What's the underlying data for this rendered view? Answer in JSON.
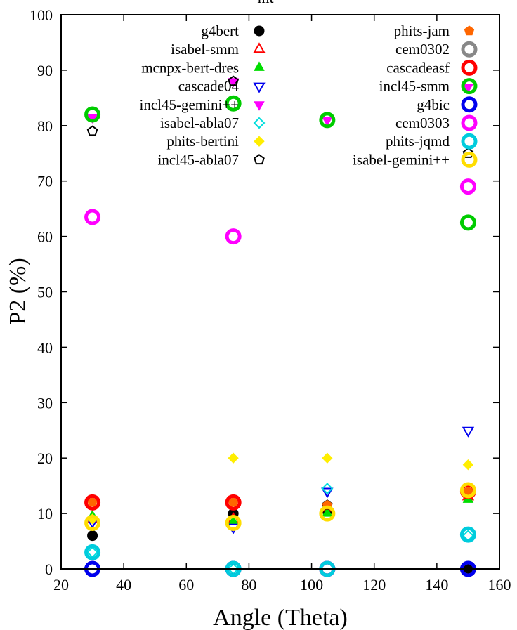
{
  "chart_data": {
    "type": "scatter",
    "title": "int",
    "xlabel": "Angle (Theta)",
    "ylabel": "P2 (%)",
    "xlim": [
      20,
      160
    ],
    "ylim": [
      0,
      100
    ],
    "xticks": [
      20,
      40,
      60,
      80,
      100,
      120,
      140,
      160
    ],
    "yticks": [
      0,
      10,
      20,
      30,
      40,
      50,
      60,
      70,
      80,
      90,
      100
    ],
    "x_tick_labels": [
      "20",
      "40",
      "60",
      "80",
      "100",
      "120",
      "140",
      "160"
    ],
    "y_tick_labels": [
      "0",
      "10",
      "20",
      "30",
      "40",
      "50",
      "60",
      "70",
      "80",
      "90",
      "100"
    ],
    "grid": false,
    "legend_position": "top (two columns)",
    "series": [
      {
        "name": "g4bert",
        "marker": "circle",
        "color": "#000000",
        "x": [
          30,
          75,
          105,
          150
        ],
        "y": [
          6,
          10,
          10.5,
          0
        ]
      },
      {
        "name": "isabel-smm",
        "marker": "triangle-up-open",
        "color": "#ff0000",
        "x": [
          30,
          75,
          105,
          150
        ],
        "y": [
          9,
          9,
          11,
          13
        ]
      },
      {
        "name": "mcnpx-bert-dres",
        "marker": "triangle-up",
        "color": "#00dd00",
        "x": [
          30,
          75,
          105,
          150
        ],
        "y": [
          9.5,
          8.5,
          10,
          12.5
        ]
      },
      {
        "name": "cascade04",
        "marker": "triangle-down-open",
        "color": "#0000ee",
        "x": [
          30,
          75,
          105,
          150
        ],
        "y": [
          8.5,
          7.5,
          14,
          25
        ]
      },
      {
        "name": "incl45-gemini++",
        "marker": "triangle-down",
        "color": "#ff00ff",
        "x": [
          30,
          75,
          105,
          150
        ],
        "y": [
          81.5,
          88,
          81,
          87
        ]
      },
      {
        "name": "isabel-abla07",
        "marker": "diamond-open",
        "color": "#00dddd",
        "x": [
          30,
          75,
          105,
          150
        ],
        "y": [
          3,
          0,
          14.5,
          6
        ]
      },
      {
        "name": "phits-bertini",
        "marker": "diamond",
        "color": "#ffee00",
        "x": [
          30,
          75,
          105,
          150
        ],
        "y": [
          9,
          20,
          20,
          18.8
        ]
      },
      {
        "name": "incl45-abla07",
        "marker": "pentagon-open",
        "color": "#000000",
        "x": [
          30,
          75,
          105,
          150
        ],
        "y": [
          79,
          88,
          11.5,
          75
        ]
      },
      {
        "name": "phits-jam",
        "marker": "pentagon",
        "color": "#ff6600",
        "x": [
          30,
          75,
          105,
          150
        ],
        "y": [
          12,
          12,
          11.5,
          14
        ]
      },
      {
        "name": "cem0302",
        "marker": "circle-ring",
        "color": "#888888",
        "x": [
          30,
          75,
          105,
          150
        ],
        "y": [
          0,
          0,
          0,
          0
        ]
      },
      {
        "name": "cascadeasf",
        "marker": "circle-ring",
        "color": "#ff0000",
        "x": [
          30,
          75,
          105,
          150
        ],
        "y": [
          12,
          12,
          0,
          14
        ]
      },
      {
        "name": "incl45-smm",
        "marker": "circle-ring",
        "color": "#00cc00",
        "x": [
          30,
          75,
          105,
          150
        ],
        "y": [
          82,
          84,
          81,
          62.5
        ]
      },
      {
        "name": "g4bic",
        "marker": "circle-ring",
        "color": "#0000ee",
        "x": [
          30,
          75,
          105,
          150
        ],
        "y": [
          0,
          0,
          0,
          0
        ]
      },
      {
        "name": "cem0303",
        "marker": "circle-ring",
        "color": "#ff00ff",
        "x": [
          30,
          75,
          105,
          150
        ],
        "y": [
          63.5,
          60,
          0,
          69
        ]
      },
      {
        "name": "phits-jqmd",
        "marker": "circle-ring",
        "color": "#00ccdd",
        "x": [
          30,
          75,
          105,
          150
        ],
        "y": [
          3,
          0,
          0,
          6.2
        ]
      },
      {
        "name": "isabel-gemini++",
        "marker": "circle-ring",
        "color": "#ffdd00",
        "x": [
          30,
          75,
          105,
          150
        ],
        "y": [
          8.3,
          8.3,
          10,
          14.2
        ]
      }
    ]
  }
}
